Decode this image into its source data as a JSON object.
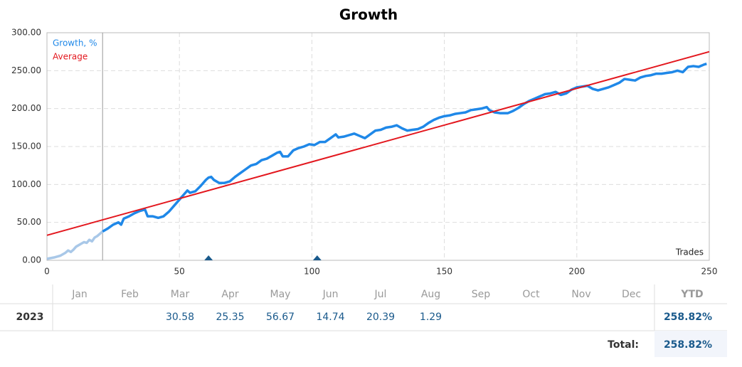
{
  "chart_data": {
    "type": "line",
    "title": "Growth",
    "x_label": "Trades",
    "xlim": [
      0,
      250
    ],
    "xticks": [
      0,
      50,
      100,
      150,
      200,
      250
    ],
    "ylim": [
      0,
      300
    ],
    "yticks": [
      {
        "value": 0,
        "label": "0.00"
      },
      {
        "value": 50,
        "label": "50.00"
      },
      {
        "value": 100,
        "label": "100.00"
      },
      {
        "value": 150,
        "label": "150.00"
      },
      {
        "value": 200,
        "label": "200.00"
      },
      {
        "value": 250,
        "label": "250.00"
      },
      {
        "value": 300,
        "label": "300.00"
      }
    ],
    "grid": true,
    "legend": "top-left",
    "vline": 21,
    "markers": [
      61,
      102
    ],
    "series": [
      {
        "name": "Growth, %",
        "color": "#1f88e8",
        "start_color": "#a9c8e8",
        "x": [
          0,
          3,
          5,
          7,
          8,
          9,
          10,
          11,
          13,
          14,
          15,
          16,
          17,
          18,
          19,
          21,
          23,
          25,
          27,
          28,
          29,
          31,
          33,
          35,
          37,
          38,
          40,
          42,
          44,
          46,
          48,
          50,
          52,
          53,
          54,
          56,
          58,
          60,
          61,
          62,
          63,
          65,
          67,
          69,
          71,
          73,
          75,
          77,
          79,
          81,
          83,
          85,
          87,
          88,
          89,
          91,
          93,
          95,
          97,
          99,
          101,
          103,
          105,
          107,
          109,
          110,
          112,
          114,
          116,
          118,
          120,
          122,
          124,
          126,
          128,
          130,
          132,
          134,
          136,
          138,
          140,
          142,
          144,
          146,
          148,
          150,
          152,
          154,
          156,
          158,
          160,
          162,
          164,
          166,
          167,
          169,
          171,
          174,
          176,
          178,
          180,
          182,
          184,
          186,
          188,
          190,
          192,
          194,
          196,
          198,
          200,
          202,
          204,
          206,
          208,
          210,
          212,
          214,
          216,
          218,
          220,
          222,
          224,
          226,
          228,
          230,
          232,
          234,
          236,
          238,
          240,
          242,
          244,
          246,
          248,
          249
        ],
        "values": [
          2,
          4,
          6,
          10,
          13,
          11,
          14,
          18,
          22,
          24,
          23,
          27,
          25,
          30,
          32,
          38,
          42,
          47,
          50,
          47,
          55,
          58,
          62,
          65,
          67,
          58,
          58,
          56,
          58,
          64,
          72,
          80,
          88,
          92,
          89,
          91,
          98,
          106,
          109,
          110,
          106,
          102,
          102,
          104,
          110,
          115,
          120,
          125,
          127,
          132,
          134,
          138,
          142,
          143,
          137,
          137,
          145,
          148,
          150,
          153,
          152,
          156,
          156,
          161,
          166,
          162,
          163,
          165,
          167,
          164,
          161,
          166,
          171,
          172,
          175,
          176,
          178,
          174,
          171,
          172,
          173,
          176,
          181,
          185,
          188,
          190,
          191,
          193,
          194,
          195,
          198,
          199,
          200,
          202,
          198,
          195,
          194,
          194,
          197,
          201,
          206,
          210,
          213,
          216,
          219,
          220,
          222,
          218,
          220,
          225,
          228,
          229,
          230,
          226,
          224,
          226,
          228,
          231,
          234,
          239,
          238,
          237,
          241,
          243,
          244,
          246,
          246,
          247,
          248,
          250,
          248,
          255,
          256,
          255,
          258,
          259
        ]
      },
      {
        "name": "Average",
        "color": "#e3171e",
        "x": [
          0,
          250
        ],
        "values": [
          33,
          275
        ]
      }
    ]
  },
  "table": {
    "header": [
      null,
      "Jan",
      "Feb",
      "Mar",
      "Apr",
      "May",
      "Jun",
      "Jul",
      "Aug",
      "Sep",
      "Oct",
      "Nov",
      "Dec",
      "YTD"
    ],
    "rows": [
      [
        "2023",
        null,
        null,
        "30.58",
        "25.35",
        "56.67",
        "14.74",
        "20.39",
        "1.29",
        null,
        null,
        null,
        null,
        "258.82%"
      ]
    ],
    "total_label": "Total:",
    "total": "258.82%"
  }
}
